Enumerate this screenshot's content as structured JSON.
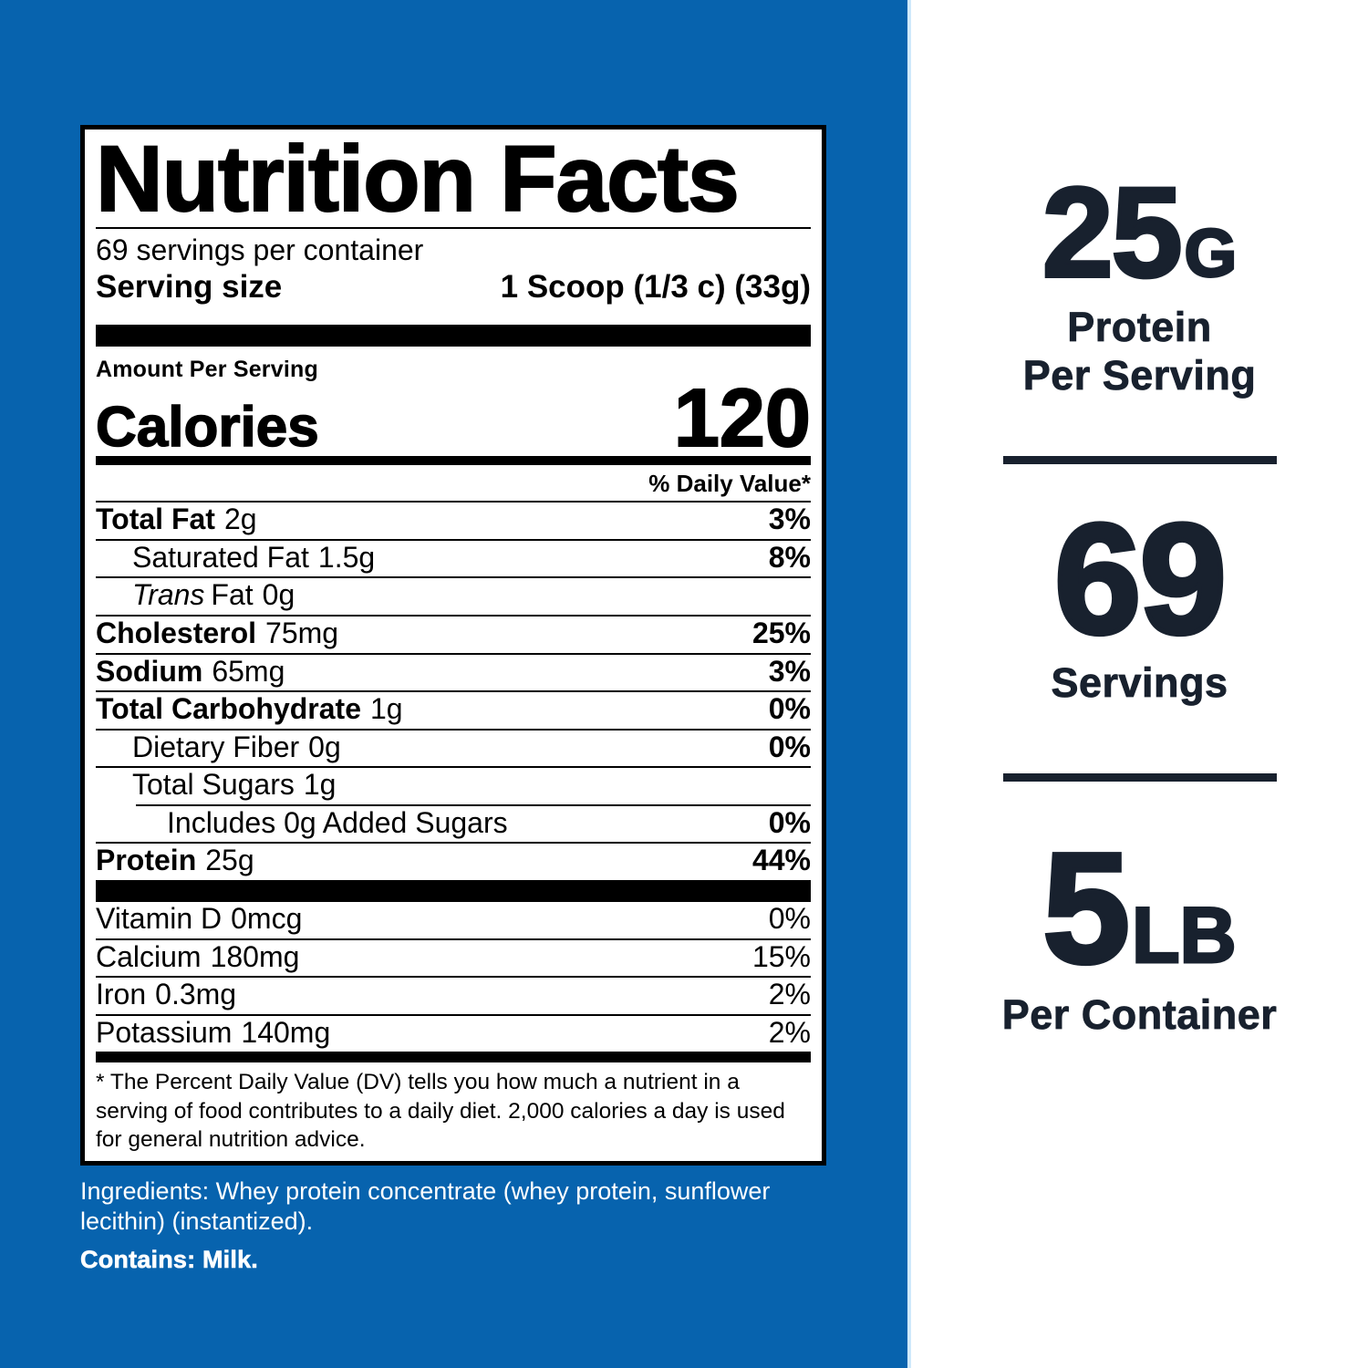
{
  "colors": {
    "background_blue": "#0763AE",
    "highlight_navy": "#18212E",
    "label_black": "#000000",
    "label_white": "#FFFFFF"
  },
  "nutrition_label": {
    "title": "Nutrition Facts",
    "servings_per_container": "69 servings per container",
    "serving_size_label": "Serving size",
    "serving_size_value": "1 Scoop (1/3 c) (33g)",
    "amount_per_serving": "Amount Per Serving",
    "calories_label": "Calories",
    "calories_value": "120",
    "daily_value_header": "% Daily Value*",
    "rows": [
      {
        "name": "Total Fat",
        "amount": "2g",
        "dv": "3%"
      },
      {
        "name": "Saturated Fat",
        "amount": "1.5g",
        "dv": "8%"
      },
      {
        "name_prefix": "Trans",
        "name": "Fat",
        "amount": "0g",
        "dv": ""
      },
      {
        "name": "Cholesterol",
        "amount": "75mg",
        "dv": "25%"
      },
      {
        "name": "Sodium",
        "amount": "65mg",
        "dv": "3%"
      },
      {
        "name": "Total Carbohydrate",
        "amount": "1g",
        "dv": "0%"
      },
      {
        "name": "Dietary Fiber",
        "amount": "0g",
        "dv": "0%"
      },
      {
        "name": "Total Sugars",
        "amount": "1g",
        "dv": ""
      },
      {
        "name": "Includes 0g Added Sugars",
        "amount": "",
        "dv": "0%"
      },
      {
        "name": "Protein",
        "amount": "25g",
        "dv": "44%"
      }
    ],
    "vitamins": [
      {
        "name": "Vitamin D",
        "amount": "0mcg",
        "dv": "0%"
      },
      {
        "name": "Calcium",
        "amount": "180mg",
        "dv": "15%"
      },
      {
        "name": "Iron",
        "amount": "0.3mg",
        "dv": "2%"
      },
      {
        "name": "Potassium",
        "amount": "140mg",
        "dv": "2%"
      }
    ],
    "footnote": "* The Percent Daily Value (DV) tells you how much a nutrient in a serving of food contributes to a daily diet. 2,000 calories a day is used for general nutrition advice."
  },
  "ingredients": {
    "text": "Ingredients: Whey protein concentrate (whey protein, sunflower lecithin) (instantized).",
    "contains": "Contains: Milk."
  },
  "highlights": [
    {
      "value": "25",
      "unit": "G",
      "line1": "Protein",
      "line2": "Per Serving"
    },
    {
      "value": "69",
      "unit": "",
      "line1": "Servings",
      "line2": ""
    },
    {
      "value": "5",
      "unit": "LB",
      "line1": "Per Container",
      "line2": ""
    }
  ]
}
